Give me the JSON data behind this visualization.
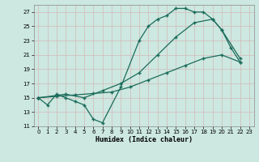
{
  "background_color": "#cce8e0",
  "grid_color": "#b8d8d0",
  "line_color": "#1a6b5a",
  "xlabel": "Humidex (Indice chaleur)",
  "ylim": [
    11,
    28
  ],
  "xlim": [
    -0.5,
    23.5
  ],
  "yticks": [
    11,
    13,
    15,
    17,
    19,
    21,
    23,
    25,
    27
  ],
  "xticks": [
    0,
    1,
    2,
    3,
    4,
    5,
    6,
    7,
    8,
    9,
    10,
    11,
    12,
    13,
    14,
    15,
    16,
    17,
    18,
    19,
    20,
    21,
    22,
    23
  ],
  "line1_x": [
    0,
    1,
    2,
    3,
    4,
    5,
    6,
    7,
    9,
    11,
    12,
    13,
    14,
    15,
    16,
    17,
    18,
    19,
    20,
    21,
    22
  ],
  "line1_y": [
    15,
    14,
    15.5,
    15,
    14.5,
    14,
    12,
    11.5,
    16.5,
    23,
    25,
    26,
    26.5,
    27.5,
    27.5,
    27,
    27,
    26,
    24.5,
    22,
    20
  ],
  "line2_x": [
    0,
    3,
    5,
    7,
    9,
    11,
    13,
    15,
    17,
    19,
    20,
    22
  ],
  "line2_y": [
    15,
    15.5,
    15,
    16,
    17,
    18.5,
    21,
    23.5,
    25.5,
    26,
    24.5,
    20.5
  ],
  "line3_x": [
    0,
    2,
    4,
    6,
    8,
    10,
    12,
    14,
    16,
    18,
    20,
    22
  ],
  "line3_y": [
    15,
    15.2,
    15.4,
    15.6,
    15.8,
    16.5,
    17.5,
    18.5,
    19.5,
    20.5,
    21,
    20
  ]
}
